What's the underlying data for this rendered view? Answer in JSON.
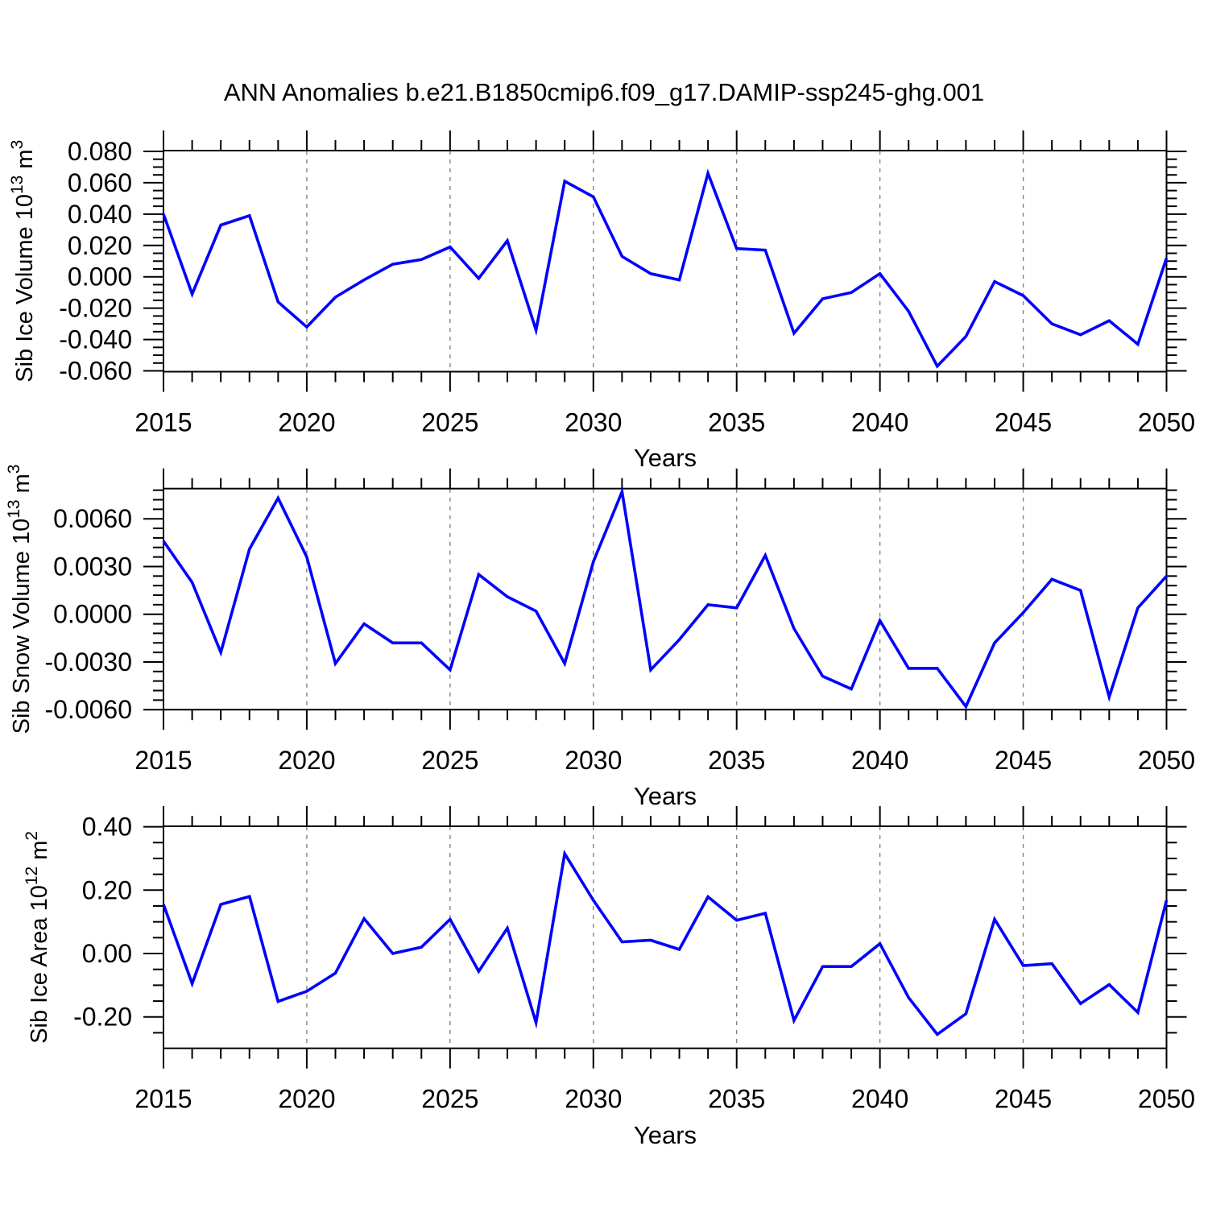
{
  "title": "ANN Anomalies b.e21.B1850cmip6.f09_g17.DAMIP-ssp245-ghg.001",
  "xlabel": "Years",
  "colors": {
    "line": "#0000ff",
    "grid": "#848484",
    "axis": "#000000",
    "background": "#ffffff",
    "text": "#000000"
  },
  "x_ticks": [
    2015,
    2020,
    2025,
    2030,
    2035,
    2040,
    2045,
    2050
  ],
  "x_tick_labels": [
    "2015",
    "2020",
    "2025",
    "2030",
    "2035",
    "2040",
    "2045",
    "2050"
  ],
  "grid_years": [
    2020,
    2025,
    2030,
    2035,
    2040,
    2045
  ],
  "years": [
    2015,
    2016,
    2017,
    2018,
    2019,
    2020,
    2021,
    2022,
    2023,
    2024,
    2025,
    2026,
    2027,
    2028,
    2029,
    2030,
    2031,
    2032,
    2033,
    2034,
    2035,
    2036,
    2037,
    2038,
    2039,
    2040,
    2041,
    2042,
    2043,
    2044,
    2045,
    2046,
    2047,
    2048,
    2049,
    2050
  ],
  "chart_data": [
    {
      "type": "line",
      "name": "sib-ice-volume",
      "ylabel_text": "Sib Ice Volume 10^13 m^3",
      "ylabel_rich": [
        {
          "t": "Sib Ice Volume 10"
        },
        {
          "t": "13",
          "sup": true
        },
        {
          "t": " m"
        },
        {
          "t": "3",
          "sup": true
        }
      ],
      "xlabel": "Years",
      "x_range": [
        2015,
        2050
      ],
      "ylim": [
        -0.0605,
        0.0805
      ],
      "yticks": [
        0.08,
        0.06,
        0.04,
        0.02,
        0.0,
        -0.02,
        -0.04,
        -0.06
      ],
      "ytick_labels": [
        "0.080",
        "0.060",
        "0.040",
        "0.020",
        "0.000",
        "-0.020",
        "-0.040",
        "-0.060"
      ],
      "yminor_step": 0.005,
      "grid": "vertical-dashed",
      "legend": "none",
      "values": [
        0.04,
        -0.011,
        0.033,
        0.039,
        -0.016,
        -0.032,
        -0.013,
        -0.002,
        0.008,
        0.011,
        0.019,
        -0.001,
        0.023,
        -0.034,
        0.061,
        0.051,
        0.013,
        0.002,
        -0.002,
        0.066,
        0.018,
        0.017,
        -0.036,
        -0.014,
        -0.01,
        0.002,
        -0.022,
        -0.057,
        -0.038,
        -0.003,
        -0.012,
        -0.03,
        -0.037,
        -0.028,
        -0.043,
        0.012
      ]
    },
    {
      "type": "line",
      "name": "sib-snow-volume",
      "ylabel_text": "Sib Snow Volume 10^13 m^3",
      "ylabel_rich": [
        {
          "t": "Sib Snow Volume 10"
        },
        {
          "t": "13",
          "sup": true
        },
        {
          "t": " m"
        },
        {
          "t": "3",
          "sup": true
        }
      ],
      "xlabel": "Years",
      "x_range": [
        2015,
        2050
      ],
      "ylim": [
        -0.006,
        0.0079
      ],
      "yticks": [
        0.006,
        0.003,
        0.0,
        -0.003,
        -0.006
      ],
      "ytick_labels": [
        "0.0060",
        "0.0030",
        "0.0000",
        "-0.0030",
        "-0.0060"
      ],
      "yminor_step": 0.0006,
      "grid": "vertical-dashed",
      "legend": "none",
      "values": [
        0.0046,
        0.002,
        -0.0024,
        0.0041,
        0.0073,
        0.0036,
        -0.0031,
        -0.0006,
        -0.0018,
        -0.0018,
        -0.0035,
        0.0025,
        0.0011,
        0.0002,
        -0.0031,
        0.0033,
        0.0077,
        -0.0035,
        -0.0016,
        0.0006,
        0.0004,
        0.0037,
        -0.0009,
        -0.0039,
        -0.0047,
        -0.0004,
        -0.0034,
        -0.0034,
        -0.0058,
        -0.0018,
        0.0001,
        0.0022,
        0.0015,
        -0.0052,
        0.0004,
        0.0024
      ]
    },
    {
      "type": "line",
      "name": "sib-ice-area",
      "ylabel_text": "Sib Ice Area 10^12 m^2",
      "ylabel_rich": [
        {
          "t": "Sib Ice Area 10"
        },
        {
          "t": "12",
          "sup": true
        },
        {
          "t": " m"
        },
        {
          "t": "2",
          "sup": true
        }
      ],
      "xlabel": "Years",
      "x_range": [
        2015,
        2050
      ],
      "ylim": [
        -0.299,
        0.4015
      ],
      "yticks": [
        0.4,
        0.2,
        0.0,
        -0.2
      ],
      "ytick_labels": [
        "0.40",
        "0.20",
        "0.00",
        "-0.20"
      ],
      "yminor_step": 0.05,
      "grid": "vertical-dashed",
      "legend": "none",
      "values": [
        0.155,
        -0.095,
        0.155,
        0.18,
        -0.151,
        -0.119,
        -0.062,
        0.11,
        0.0,
        0.02,
        0.108,
        -0.056,
        0.08,
        -0.218,
        0.315,
        0.168,
        0.037,
        0.042,
        0.013,
        0.179,
        0.105,
        0.127,
        -0.211,
        -0.041,
        -0.041,
        0.031,
        -0.139,
        -0.255,
        -0.19,
        0.108,
        -0.038,
        -0.032,
        -0.158,
        -0.098,
        -0.186,
        0.168
      ]
    }
  ]
}
